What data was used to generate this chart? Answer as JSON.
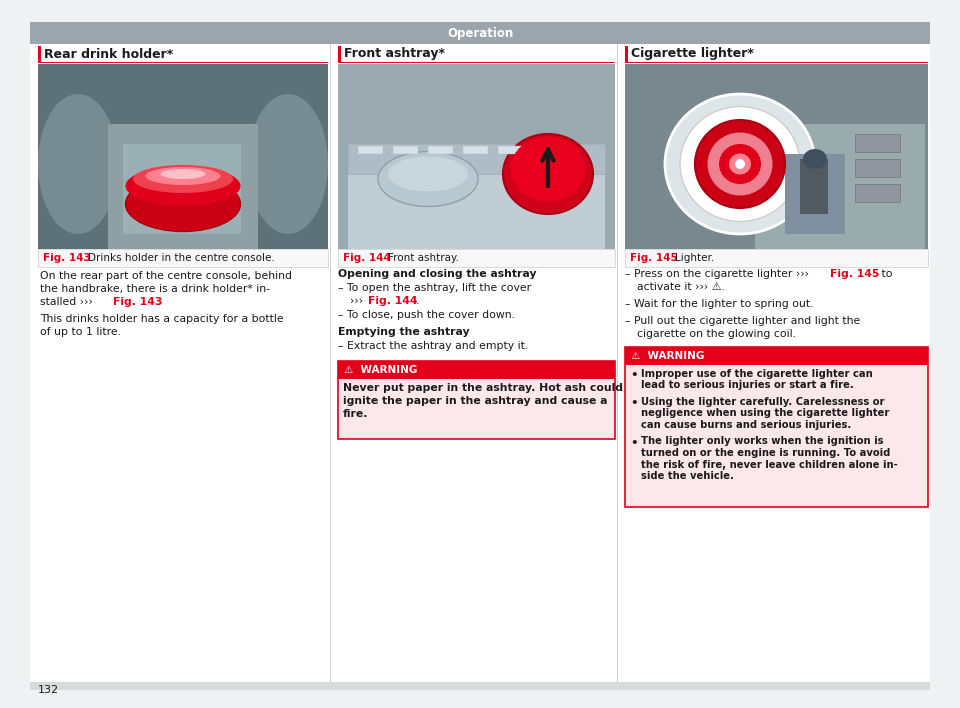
{
  "page_bg": "#eff1f3",
  "content_bg": "#ffffff",
  "header_bg": "#9ca4ac",
  "header_text": "Operation",
  "header_text_color": "#ffffff",
  "page_number": "132",
  "col1_title": "Rear drink holder*",
  "col2_title": "Front ashtray*",
  "col3_title": "Cigarette lighter*",
  "col1_fig_label": "Fig. 143",
  "col1_fig_caption": "  Drinks holder in the centre console.",
  "col2_fig_label": "Fig. 144",
  "col2_fig_caption": "  Front ashtray.",
  "col3_fig_label": "Fig. 145",
  "col3_fig_caption": "  Lighter.",
  "red_color": "#e2001a",
  "fig_label_color": "#e2001a",
  "text_color": "#1a1a1a",
  "warning_header_color": "#e2001a",
  "warning_bg": "#fce8ea",
  "col2_warning_text": "Never put paper in the ashtray. Hot ash could\nignite the paper in the ashtray and cause a\nfire.",
  "col3_warning_bullets": [
    "Improper use of the cigarette lighter can\nlead to serious injuries or start a fire.",
    "Using the lighter carefully. Carelessness or\nnegligence when using the cigarette lighter\ncan cause burns and serious injuries.",
    "The lighter only works when the ignition is\nturned on or the engine is running. To avoid\nthe risk of fire, never leave children alone in-\nside the vehicle."
  ]
}
